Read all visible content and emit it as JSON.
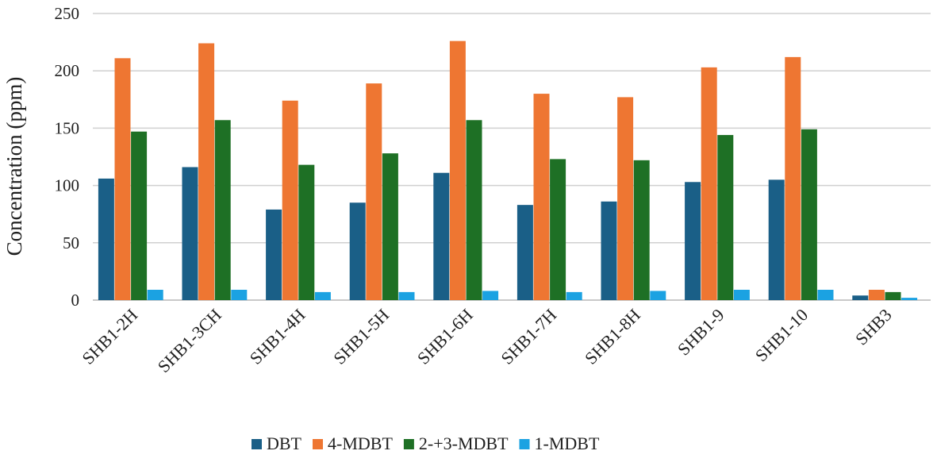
{
  "chart_data": {
    "type": "bar",
    "title": "",
    "xlabel": "",
    "ylabel": "Concentration (ppm)",
    "ylim": [
      0,
      250
    ],
    "yticks": [
      0,
      50,
      100,
      150,
      200,
      250
    ],
    "grid": true,
    "legend_position": "bottom",
    "categories": [
      "SHB1-2H",
      "SHB1-3CH",
      "SHB1-4H",
      "SHB1-5H",
      "SHB1-6H",
      "SHB1-7H",
      "SHB1-8H",
      "SHB1-9",
      "SHB1-10",
      "SHB3"
    ],
    "series": [
      {
        "name": "DBT",
        "color": "#1a5f87",
        "values": [
          106,
          116,
          79,
          85,
          111,
          83,
          86,
          103,
          105,
          4
        ]
      },
      {
        "name": "4-MDBT",
        "color": "#ee7632",
        "values": [
          211,
          224,
          174,
          189,
          226,
          180,
          177,
          203,
          212,
          9
        ]
      },
      {
        "name": "2-+3-MDBT",
        "color": "#1e7025",
        "values": [
          147,
          157,
          118,
          128,
          157,
          123,
          122,
          144,
          149,
          7
        ]
      },
      {
        "name": "1-MDBT",
        "color": "#1ba2e2",
        "values": [
          9,
          9,
          7,
          7,
          8,
          7,
          8,
          9,
          9,
          2
        ]
      }
    ]
  }
}
